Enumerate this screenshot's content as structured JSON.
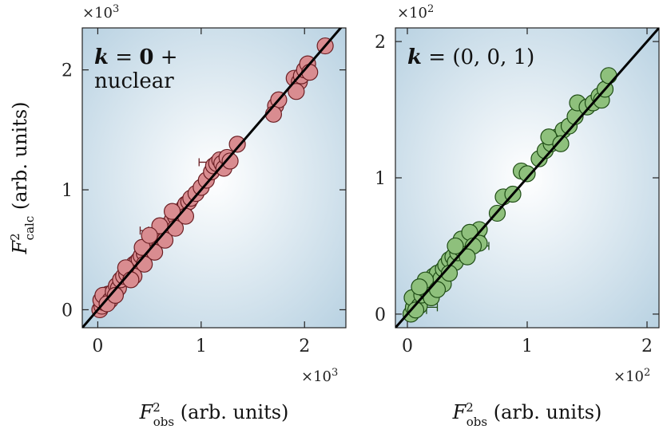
{
  "chart_data": [
    {
      "type": "scatter",
      "label_parts": [
        "k",
        " = ",
        "0",
        " +"
      ],
      "label_line2": "nuclear",
      "x_multiplier": "×10",
      "x_exp": "3",
      "y_multiplier": "×10",
      "y_exp": "3",
      "xlim": [
        -0.15,
        2.4
      ],
      "ylim": [
        -0.15,
        2.35
      ],
      "xticks": [
        0,
        1,
        2
      ],
      "yticks": [
        0,
        1,
        2
      ],
      "xticklabels": [
        "0",
        "1",
        "2"
      ],
      "yticklabels": [
        "0",
        "1",
        "2"
      ],
      "fit_line": [
        [
          -0.15,
          -0.15
        ],
        [
          2.45,
          2.45
        ]
      ],
      "marker_color": "#d98c90",
      "edge_color": "#6b1f24",
      "points": [
        [
          0.02,
          0.0
        ],
        [
          0.04,
          0.03
        ],
        [
          0.06,
          0.06
        ],
        [
          0.03,
          0.08
        ],
        [
          0.08,
          0.1
        ],
        [
          0.1,
          0.13
        ],
        [
          0.05,
          0.12
        ],
        [
          0.12,
          0.08
        ],
        [
          0.09,
          0.05
        ],
        [
          0.15,
          0.15
        ],
        [
          0.18,
          0.2
        ],
        [
          0.2,
          0.18
        ],
        [
          0.22,
          0.25
        ],
        [
          0.25,
          0.28
        ],
        [
          0.28,
          0.3
        ],
        [
          0.3,
          0.33
        ],
        [
          0.33,
          0.35
        ],
        [
          0.35,
          0.38
        ],
        [
          0.38,
          0.4
        ],
        [
          0.4,
          0.42
        ],
        [
          0.42,
          0.45
        ],
        [
          0.45,
          0.47
        ],
        [
          0.48,
          0.5
        ],
        [
          0.5,
          0.52
        ],
        [
          0.52,
          0.55
        ],
        [
          0.55,
          0.58
        ],
        [
          0.58,
          0.6
        ],
        [
          0.6,
          0.63
        ],
        [
          0.62,
          0.65
        ],
        [
          0.65,
          0.67
        ],
        [
          0.68,
          0.7
        ],
        [
          0.7,
          0.72
        ],
        [
          0.72,
          0.75
        ],
        [
          0.75,
          0.78
        ],
        [
          0.78,
          0.8
        ],
        [
          0.8,
          0.82
        ],
        [
          0.83,
          0.85
        ],
        [
          0.85,
          0.88
        ],
        [
          0.88,
          0.9
        ],
        [
          0.9,
          0.93
        ],
        [
          0.95,
          0.97
        ],
        [
          1.0,
          1.02
        ],
        [
          1.05,
          1.08
        ],
        [
          1.1,
          1.15
        ],
        [
          1.12,
          1.2
        ],
        [
          1.15,
          1.22
        ],
        [
          1.18,
          1.25
        ],
        [
          1.2,
          1.22
        ],
        [
          1.22,
          1.18
        ],
        [
          1.25,
          1.27
        ],
        [
          1.28,
          1.24
        ],
        [
          1.35,
          1.38
        ],
        [
          1.72,
          1.7
        ],
        [
          1.75,
          1.75
        ],
        [
          1.7,
          1.63
        ],
        [
          1.9,
          1.93
        ],
        [
          1.95,
          1.9
        ],
        [
          1.92,
          1.82
        ],
        [
          1.97,
          1.95
        ],
        [
          2.0,
          2.0
        ],
        [
          2.03,
          2.05
        ],
        [
          2.05,
          1.98
        ],
        [
          2.2,
          2.2
        ],
        [
          0.35,
          0.28
        ],
        [
          0.45,
          0.38
        ],
        [
          0.55,
          0.48
        ],
        [
          0.65,
          0.58
        ],
        [
          0.75,
          0.68
        ],
        [
          0.85,
          0.78
        ],
        [
          0.43,
          0.52
        ],
        [
          0.6,
          0.7
        ],
        [
          0.72,
          0.82
        ],
        [
          0.27,
          0.35
        ],
        [
          0.17,
          0.12
        ],
        [
          0.32,
          0.25
        ],
        [
          0.5,
          0.62
        ]
      ],
      "error_bars": [
        {
          "x": 1.05,
          "y": 1.23,
          "xerr": 0.07
        },
        {
          "x": 0.45,
          "y": 0.66,
          "xerr": 0.04
        },
        {
          "x": 0.12,
          "y": 0.05,
          "xerr": 0.04
        }
      ]
    },
    {
      "type": "scatter",
      "label_parts": [
        "k",
        " = ",
        "(0, 0, 1)",
        ""
      ],
      "label_line2": "",
      "x_multiplier": "×10",
      "x_exp": "2",
      "y_multiplier": "×10",
      "y_exp": "2",
      "xlim": [
        -0.1,
        2.1
      ],
      "ylim": [
        -0.1,
        2.1
      ],
      "xticks": [
        0,
        1,
        2
      ],
      "yticks": [
        0,
        1,
        2
      ],
      "xticklabels": [
        "0",
        "1",
        "2"
      ],
      "yticklabels": [
        "0",
        "1",
        "2"
      ],
      "fit_line": [
        [
          -0.1,
          -0.1
        ],
        [
          2.1,
          2.1
        ]
      ],
      "marker_color": "#8ec07c",
      "edge_color": "#1f4d16",
      "points": [
        [
          0.03,
          0.0
        ],
        [
          0.05,
          0.05
        ],
        [
          0.08,
          0.1
        ],
        [
          0.04,
          0.12
        ],
        [
          0.1,
          0.06
        ],
        [
          0.12,
          0.14
        ],
        [
          0.15,
          0.18
        ],
        [
          0.18,
          0.15
        ],
        [
          0.2,
          0.22
        ],
        [
          0.22,
          0.28
        ],
        [
          0.25,
          0.3
        ],
        [
          0.28,
          0.26
        ],
        [
          0.3,
          0.33
        ],
        [
          0.32,
          0.36
        ],
        [
          0.35,
          0.4
        ],
        [
          0.38,
          0.42
        ],
        [
          0.4,
          0.38
        ],
        [
          0.42,
          0.45
        ],
        [
          0.45,
          0.48
        ],
        [
          0.48,
          0.5
        ],
        [
          0.5,
          0.53
        ],
        [
          0.52,
          0.55
        ],
        [
          0.55,
          0.58
        ],
        [
          0.58,
          0.56
        ],
        [
          0.6,
          0.62
        ],
        [
          0.45,
          0.55
        ],
        [
          0.52,
          0.6
        ],
        [
          0.4,
          0.5
        ],
        [
          0.3,
          0.22
        ],
        [
          0.2,
          0.12
        ],
        [
          0.15,
          0.25
        ],
        [
          0.35,
          0.3
        ],
        [
          0.6,
          0.52
        ],
        [
          0.55,
          0.5
        ],
        [
          0.5,
          0.42
        ],
        [
          0.75,
          0.74
        ],
        [
          0.8,
          0.86
        ],
        [
          0.88,
          0.88
        ],
        [
          0.95,
          1.05
        ],
        [
          1.0,
          1.03
        ],
        [
          1.1,
          1.14
        ],
        [
          1.15,
          1.2
        ],
        [
          1.2,
          1.25
        ],
        [
          1.25,
          1.3
        ],
        [
          1.3,
          1.35
        ],
        [
          1.35,
          1.38
        ],
        [
          1.4,
          1.45
        ],
        [
          1.42,
          1.55
        ],
        [
          1.5,
          1.52
        ],
        [
          1.55,
          1.55
        ],
        [
          1.6,
          1.6
        ],
        [
          1.62,
          1.57
        ],
        [
          1.65,
          1.65
        ],
        [
          1.68,
          1.75
        ],
        [
          1.18,
          1.3
        ],
        [
          1.28,
          1.25
        ],
        [
          0.1,
          0.2
        ],
        [
          0.25,
          0.18
        ],
        [
          0.07,
          0.03
        ]
      ],
      "error_bars": [
        {
          "x": 0.6,
          "y": 0.5,
          "xerr": 0.08
        },
        {
          "x": 0.2,
          "y": 0.05,
          "xerr": 0.05
        },
        {
          "x": 0.12,
          "y": 0.03,
          "xerr": 0.04
        }
      ]
    }
  ],
  "xlabel_base": "F",
  "xlabel_sup": "2",
  "xlabel_sub": "obs",
  "xlabel_rest": " (arb. units)",
  "ylabel_base": "F",
  "ylabel_sup": "2",
  "ylabel_sub": "calc",
  "ylabel_rest": " (arb. units)"
}
